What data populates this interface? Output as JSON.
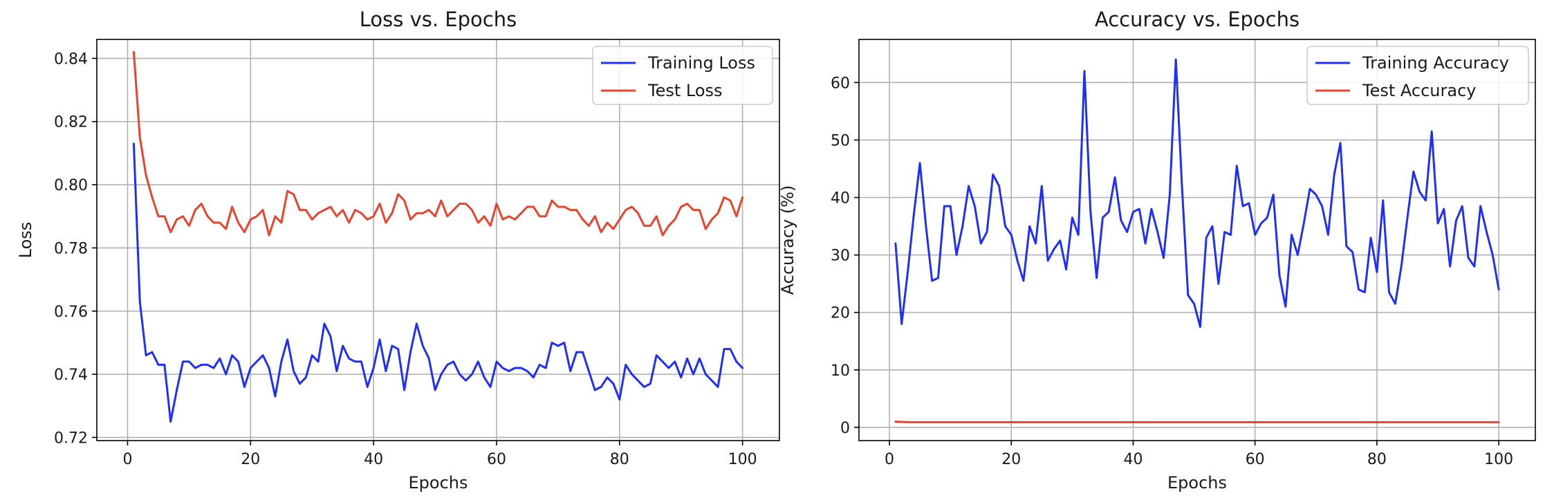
{
  "colors": {
    "training": "#1f2ff5",
    "test": "#e8432c"
  },
  "chart_data": [
    {
      "type": "line",
      "title": "Loss vs. Epochs",
      "xlabel": "Epochs",
      "ylabel": "Loss",
      "xlim": [
        -5,
        106
      ],
      "ylim": [
        0.719,
        0.846
      ],
      "xticks": [
        "0",
        "20",
        "40",
        "60",
        "80",
        "100"
      ],
      "yticks": [
        "0.72",
        "0.74",
        "0.76",
        "0.78",
        "0.80",
        "0.82",
        "0.84"
      ],
      "grid": true,
      "legend": "top-right",
      "x_start": 1,
      "x_step": 1,
      "series": [
        {
          "name": "Training Loss",
          "color": "#1f2ff5",
          "values": [
            0.813,
            0.763,
            0.746,
            0.747,
            0.743,
            0.743,
            0.725,
            0.735,
            0.744,
            0.744,
            0.742,
            0.743,
            0.743,
            0.742,
            0.745,
            0.74,
            0.746,
            0.744,
            0.736,
            0.742,
            0.744,
            0.746,
            0.742,
            0.733,
            0.744,
            0.751,
            0.741,
            0.737,
            0.739,
            0.746,
            0.744,
            0.756,
            0.752,
            0.741,
            0.749,
            0.745,
            0.744,
            0.744,
            0.736,
            0.742,
            0.751,
            0.741,
            0.749,
            0.748,
            0.735,
            0.747,
            0.756,
            0.749,
            0.745,
            0.735,
            0.74,
            0.743,
            0.744,
            0.74,
            0.738,
            0.74,
            0.744,
            0.739,
            0.736,
            0.744,
            0.742,
            0.741,
            0.742,
            0.742,
            0.741,
            0.739,
            0.743,
            0.742,
            0.75,
            0.749,
            0.75,
            0.741,
            0.747,
            0.747,
            0.741,
            0.735,
            0.736,
            0.739,
            0.737,
            0.732,
            0.743,
            0.74,
            0.738,
            0.736,
            0.737,
            0.746,
            0.744,
            0.742,
            0.744,
            0.739,
            0.745,
            0.74,
            0.745,
            0.74,
            0.738,
            0.736,
            0.748,
            0.748,
            0.744,
            0.742
          ]
        },
        {
          "name": "Test Loss",
          "color": "#e8432c",
          "values": [
            0.842,
            0.815,
            0.803,
            0.796,
            0.79,
            0.79,
            0.785,
            0.789,
            0.79,
            0.787,
            0.792,
            0.794,
            0.79,
            0.788,
            0.788,
            0.786,
            0.793,
            0.788,
            0.785,
            0.789,
            0.79,
            0.792,
            0.784,
            0.79,
            0.788,
            0.798,
            0.797,
            0.792,
            0.792,
            0.789,
            0.791,
            0.792,
            0.793,
            0.79,
            0.792,
            0.788,
            0.792,
            0.791,
            0.789,
            0.79,
            0.794,
            0.788,
            0.791,
            0.797,
            0.795,
            0.789,
            0.791,
            0.791,
            0.792,
            0.79,
            0.795,
            0.79,
            0.792,
            0.794,
            0.794,
            0.792,
            0.788,
            0.79,
            0.787,
            0.794,
            0.789,
            0.79,
            0.789,
            0.791,
            0.793,
            0.793,
            0.79,
            0.79,
            0.795,
            0.793,
            0.793,
            0.792,
            0.792,
            0.789,
            0.787,
            0.79,
            0.785,
            0.788,
            0.786,
            0.789,
            0.792,
            0.793,
            0.791,
            0.787,
            0.787,
            0.79,
            0.784,
            0.787,
            0.789,
            0.793,
            0.794,
            0.792,
            0.792,
            0.786,
            0.789,
            0.791,
            0.796,
            0.795,
            0.79,
            0.796
          ]
        }
      ]
    },
    {
      "type": "line",
      "title": "Accuracy vs. Epochs",
      "xlabel": "Epochs",
      "ylabel": "Accuracy (%)",
      "xlim": [
        -5,
        106
      ],
      "ylim": [
        -2.3,
        67.5
      ],
      "xticks": [
        "0",
        "20",
        "40",
        "60",
        "80",
        "100"
      ],
      "yticks": [
        "0",
        "10",
        "20",
        "30",
        "40",
        "50",
        "60"
      ],
      "grid": true,
      "legend": "top-right",
      "x_start": 1,
      "x_step": 1,
      "series": [
        {
          "name": "Training Accuracy",
          "color": "#1f2ff5",
          "values": [
            32.0,
            18.0,
            27.0,
            37.0,
            46.0,
            35.0,
            25.5,
            26.0,
            38.5,
            38.5,
            30.0,
            35.0,
            42.0,
            38.5,
            32.0,
            34.0,
            44.0,
            42.0,
            35.0,
            33.5,
            29.0,
            25.5,
            35.0,
            32.0,
            42.0,
            29.0,
            31.0,
            32.5,
            27.5,
            36.5,
            33.5,
            62.0,
            37.5,
            26.0,
            36.5,
            37.5,
            43.5,
            36.0,
            34.0,
            37.5,
            38.0,
            32.0,
            38.0,
            34.0,
            29.5,
            40.5,
            64.0,
            42.0,
            23.0,
            21.5,
            17.5,
            33.0,
            35.0,
            25.0,
            34.0,
            33.5,
            45.5,
            38.5,
            39.0,
            33.5,
            35.5,
            36.5,
            40.5,
            26.5,
            21.0,
            33.5,
            30.0,
            35.5,
            41.5,
            40.5,
            38.5,
            33.5,
            44.0,
            49.5,
            31.5,
            30.5,
            24.0,
            23.5,
            33.0,
            27.0,
            39.5,
            23.5,
            21.5,
            28.0,
            36.5,
            44.5,
            41.0,
            39.5,
            51.5,
            35.5,
            38.0,
            28.0,
            36.0,
            38.5,
            29.5,
            28.0,
            38.5,
            34.0,
            30.0,
            24.0
          ]
        },
        {
          "name": "Test Accuracy",
          "color": "#e8432c",
          "values": [
            1.0,
            0.95,
            0.9,
            0.9,
            0.9,
            0.9,
            0.9,
            0.9,
            0.9,
            0.9,
            0.9,
            0.9,
            0.9,
            0.9,
            0.9,
            0.9,
            0.9,
            0.9,
            0.9,
            0.9,
            0.9,
            0.9,
            0.9,
            0.9,
            0.9,
            0.9,
            0.9,
            0.9,
            0.9,
            0.9,
            0.9,
            0.9,
            0.9,
            0.9,
            0.9,
            0.9,
            0.9,
            0.9,
            0.9,
            0.9,
            0.9,
            0.9,
            0.9,
            0.9,
            0.9,
            0.9,
            0.9,
            0.9,
            0.9,
            0.9,
            0.9,
            0.9,
            0.9,
            0.9,
            0.9,
            0.9,
            0.9,
            0.9,
            0.9,
            0.9,
            0.9,
            0.9,
            0.9,
            0.9,
            0.9,
            0.9,
            0.9,
            0.9,
            0.9,
            0.9,
            0.9,
            0.9,
            0.9,
            0.9,
            0.9,
            0.9,
            0.9,
            0.9,
            0.9,
            0.9,
            0.9,
            0.9,
            0.9,
            0.9,
            0.9,
            0.9,
            0.9,
            0.9,
            0.9,
            0.9,
            0.9,
            0.9,
            0.9,
            0.9,
            0.9,
            0.9,
            0.9,
            0.9,
            0.9,
            0.9
          ]
        }
      ]
    }
  ]
}
